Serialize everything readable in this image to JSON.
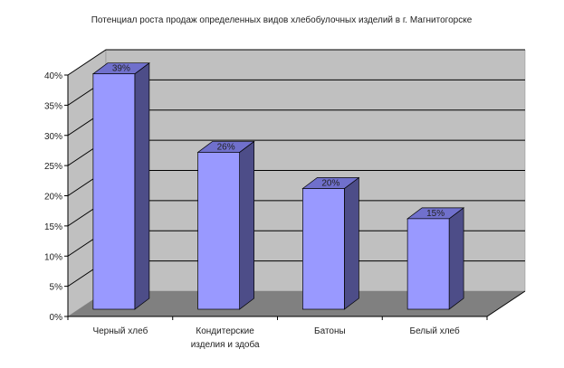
{
  "chart_data": {
    "type": "bar",
    "style": "3d-column",
    "title": "Потенциал роста продаж определенных видов хлебобулочных изделий в г. Магнитогорске",
    "categories": [
      [
        "Черный хлеб"
      ],
      [
        "Кондитерские",
        "изделия и здоба"
      ],
      [
        "Батоны"
      ],
      [
        "Белый хлеб"
      ]
    ],
    "values": [
      39,
      26,
      20,
      15
    ],
    "data_labels": [
      "39%",
      "26%",
      "20%",
      "15%"
    ],
    "y_ticks": [
      "0%",
      "5%",
      "10%",
      "15%",
      "20%",
      "25%",
      "30%",
      "35%",
      "40%"
    ],
    "ylim": [
      0,
      40
    ],
    "grid": true,
    "colors": {
      "bar_front": "#9999ff",
      "bar_top": "#7070cc",
      "bar_side": "#4d4d88",
      "wall": "#c0c0c0",
      "floor": "#808080"
    }
  }
}
